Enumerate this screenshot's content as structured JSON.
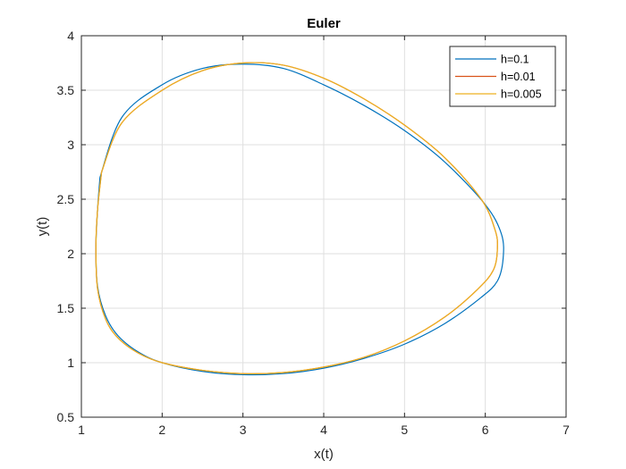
{
  "chart_data": {
    "type": "line",
    "title": "Euler",
    "xlabel": "x(t)",
    "ylabel": "y(t)",
    "xlim": [
      1,
      7
    ],
    "ylim": [
      0.5,
      4
    ],
    "xticks": [
      1,
      2,
      3,
      4,
      5,
      6,
      7
    ],
    "xtick_labels": [
      "1",
      "2",
      "3",
      "4",
      "5",
      "6",
      "7"
    ],
    "yticks": [
      0.5,
      1,
      1.5,
      2,
      2.5,
      3,
      3.5,
      4
    ],
    "ytick_labels": [
      "0.5",
      "1",
      "1.5",
      "2",
      "2.5",
      "3",
      "3.5",
      "4"
    ],
    "grid": true,
    "legend_position": "top-right",
    "series": [
      {
        "name": "h=0.1",
        "color": "#0072BD",
        "x": [
          1.23,
          1.5,
          2.0,
          2.5,
          3.0,
          3.5,
          4.0,
          4.5,
          5.0,
          5.5,
          6.0,
          6.2,
          6.22,
          6.15,
          5.95,
          5.5,
          5.0,
          4.5,
          4.0,
          3.5,
          3.0,
          2.5,
          2.0,
          1.7,
          1.45,
          1.3,
          1.2,
          1.18,
          1.2,
          1.23
        ],
        "y": [
          2.7,
          3.25,
          3.55,
          3.7,
          3.74,
          3.7,
          3.55,
          3.36,
          3.13,
          2.84,
          2.45,
          2.18,
          1.95,
          1.75,
          1.6,
          1.36,
          1.17,
          1.04,
          0.95,
          0.9,
          0.89,
          0.92,
          1.0,
          1.1,
          1.25,
          1.43,
          1.7,
          2.05,
          2.4,
          2.7
        ]
      },
      {
        "name": "h=0.01",
        "color": "#D95319",
        "x": [
          1.25,
          1.5,
          2.0,
          2.5,
          3.0,
          3.5,
          4.0,
          4.5,
          5.0,
          5.5,
          5.95,
          6.12,
          6.15,
          6.1,
          5.9,
          5.5,
          5.0,
          4.5,
          4.0,
          3.5,
          3.0,
          2.5,
          2.0,
          1.7,
          1.45,
          1.3,
          1.2,
          1.18,
          1.2,
          1.25
        ],
        "y": [
          2.75,
          3.2,
          3.5,
          3.68,
          3.75,
          3.73,
          3.61,
          3.42,
          3.18,
          2.88,
          2.5,
          2.22,
          2.05,
          1.85,
          1.67,
          1.42,
          1.2,
          1.05,
          0.96,
          0.91,
          0.9,
          0.93,
          1.0,
          1.09,
          1.23,
          1.4,
          1.68,
          2.05,
          2.4,
          2.75
        ]
      },
      {
        "name": "h=0.005",
        "color": "#EDB120",
        "x": [
          1.25,
          1.5,
          2.0,
          2.5,
          3.0,
          3.5,
          4.0,
          4.5,
          5.0,
          5.5,
          5.95,
          6.12,
          6.15,
          6.1,
          5.9,
          5.5,
          5.0,
          4.5,
          4.0,
          3.5,
          3.0,
          2.5,
          2.0,
          1.7,
          1.45,
          1.3,
          1.2,
          1.18,
          1.2,
          1.25
        ],
        "y": [
          2.75,
          3.2,
          3.5,
          3.68,
          3.75,
          3.73,
          3.61,
          3.42,
          3.18,
          2.88,
          2.5,
          2.22,
          2.05,
          1.85,
          1.67,
          1.42,
          1.2,
          1.05,
          0.96,
          0.91,
          0.9,
          0.93,
          1.0,
          1.09,
          1.23,
          1.4,
          1.68,
          2.05,
          2.4,
          2.75
        ]
      }
    ]
  }
}
